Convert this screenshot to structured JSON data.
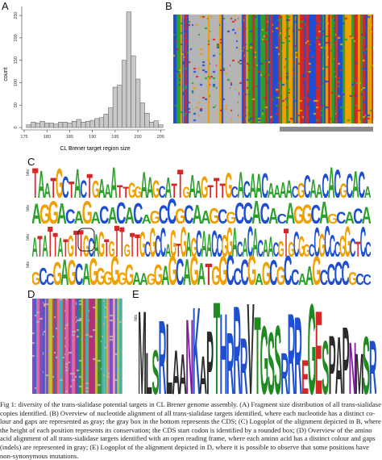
{
  "panels": {
    "a": "A",
    "b": "B",
    "c": "C",
    "d": "D",
    "e": "E"
  },
  "colors": {
    "A": "#2ca02c",
    "C": "#1f4fd1",
    "G": "#f0a000",
    "T": "#d62728",
    "gap": "#b5b5b5",
    "hist_bar": "#c8c8c8"
  },
  "chart_data": {
    "type": "bar",
    "xlabel": "CL Brener target region size",
    "ylabel": "count",
    "x_ticks": [
      "175",
      "180",
      "185",
      "190",
      "195",
      "200",
      "205"
    ],
    "y_ticks": [
      "0",
      "50",
      "100",
      "150",
      "200",
      "250"
    ],
    "xlim": [
      175,
      206
    ],
    "ylim": [
      0,
      270
    ],
    "bins": [
      176,
      177,
      178,
      179,
      180,
      181,
      182,
      183,
      184,
      185,
      186,
      187,
      188,
      189,
      190,
      191,
      192,
      193,
      194,
      195,
      196,
      197,
      198,
      199,
      200,
      201,
      202,
      203,
      204,
      205
    ],
    "values": [
      6,
      12,
      10,
      14,
      10,
      10,
      8,
      12,
      12,
      10,
      14,
      18,
      12,
      14,
      16,
      20,
      22,
      30,
      44,
      90,
      95,
      150,
      258,
      160,
      108,
      55,
      32,
      12,
      15,
      6
    ]
  },
  "logo_rows": [
    {
      "axis": "bits",
      "sequence": "TAATGCTACTGAAATTGGAAGCATTGAAGTTTGCACAACAAAACGCAACACGCACA"
    },
    {
      "axis": "bits",
      "sequence": "AGGACAGACACACAGCCGCAAGCGCCACACAGGCAGCACA"
    },
    {
      "axis": "bits",
      "sequence": "ATATTATGTTGCAGTGTTGTTGCGCCAGTGAGCAACCGGACACACAACGTGCGGCCGCCCGGCTCC"
    },
    {
      "axis": "bits",
      "sequence": "GCCGAGCAGGGGGGAAGGAGCAGATGGCCCGAGCGCCAAGCCCCGCC"
    }
  ],
  "logo_e": {
    "axis": "bits",
    "sequence": "MLSRLAANKAPTHRRRVTGSSRRREGESPAPNMSR"
  },
  "caption": [
    "Fig 1: diversity of the trans-sialidase potential targets in CL Brener genome assembly. (A) Fragment size distribution of all trans-sialidase",
    "copies identified. (B) Overview of nucleotide alignment of all trans-sialidase targets identified, where each nucleotide has a distinct co-",
    "lour and gaps are represented as gray; the gray box in the bottom represents the CDS; (C) Logoplot of the alignment depicted in B, where",
    "the height of each position represents its conservation; the CDS start codon is identified by a rounded box; (D) Overview of the amino",
    "acid alignment of all trans-sialidase targets identified with an open reading frame, where each amino acid has a distinct colour and gaps",
    "(indels) are represented in gray; (E) Logoplot of the alignment depicted in D, where it is possible to observe that some positions have",
    "non-synonymous mutations."
  ]
}
